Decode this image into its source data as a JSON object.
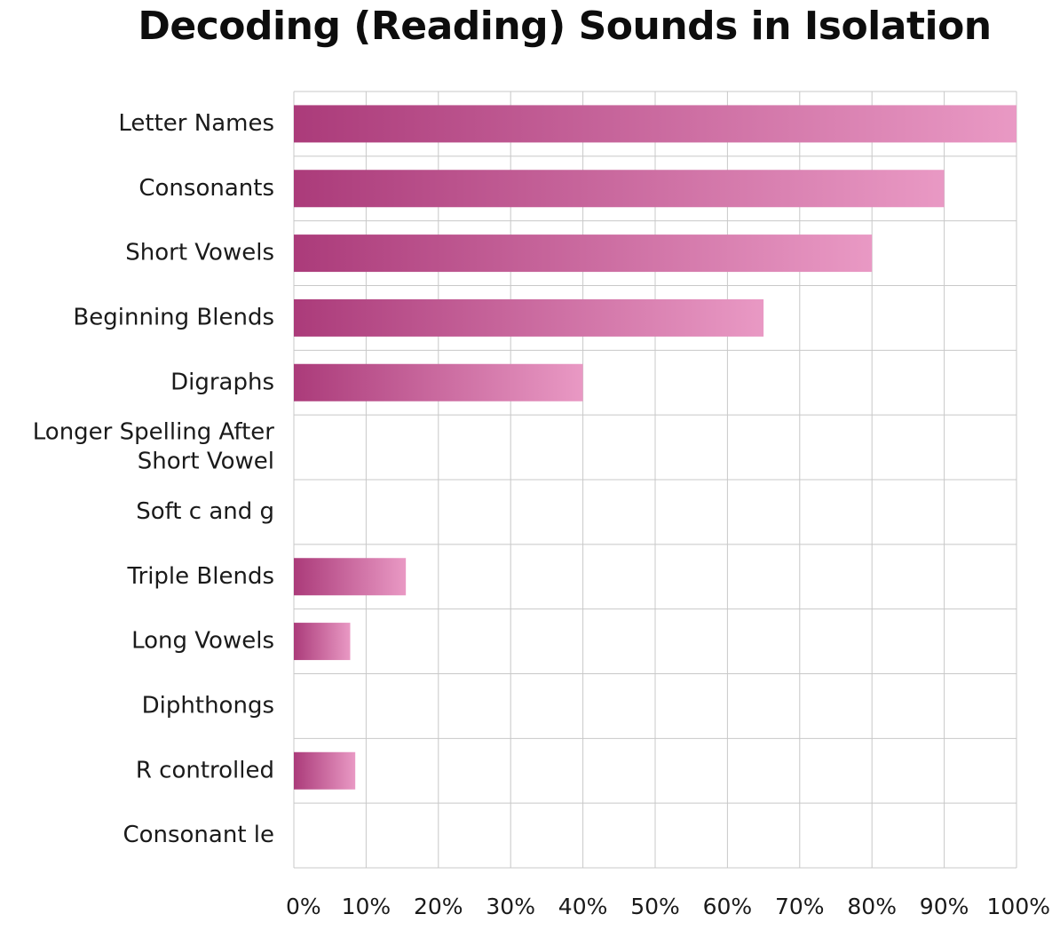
{
  "chart_data": {
    "type": "bar",
    "orientation": "horizontal",
    "title": "Decoding (Reading) Sounds in Isolation",
    "categories": [
      "Letter Names",
      "Consonants",
      "Short Vowels",
      "Beginning Blends",
      "Digraphs",
      "Longer Spelling After Short Vowel",
      "Soft c and g",
      "Triple Blends",
      "Long Vowels",
      "Diphthongs",
      "R controlled",
      "Consonant le"
    ],
    "category_label_lines": [
      [
        "Letter Names"
      ],
      [
        "Consonants"
      ],
      [
        "Short Vowels"
      ],
      [
        "Beginning Blends"
      ],
      [
        "Digraphs"
      ],
      [
        "Longer Spelling After",
        "Short Vowel"
      ],
      [
        "Soft c and g"
      ],
      [
        "Triple Blends"
      ],
      [
        "Long Vowels"
      ],
      [
        "Diphthongs"
      ],
      [
        "R controlled"
      ],
      [
        "Consonant le"
      ]
    ],
    "values": [
      1.0,
      0.9,
      0.8,
      0.65,
      0.4,
      0,
      0,
      0.155,
      0.078,
      0,
      0.085,
      0
    ],
    "xlim": [
      0,
      1
    ],
    "xticks": [
      "0%",
      "10%",
      "20%",
      "30%",
      "40%",
      "50%",
      "60%",
      "70%",
      "80%",
      "90%",
      "100%"
    ],
    "grid": true,
    "legend": "none",
    "bar_gradient": [
      "#ab3b7a",
      "#e999c4"
    ],
    "grid_color": "#c8c8c8"
  }
}
